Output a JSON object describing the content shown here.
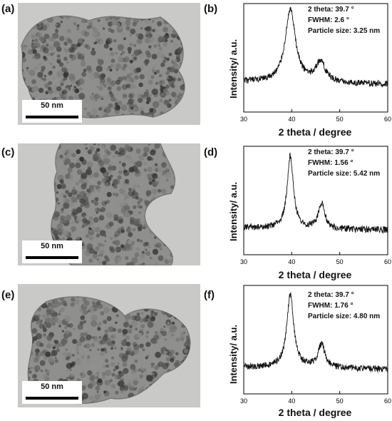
{
  "panels": [
    {
      "label": "(a)",
      "scale_bar": "50 nm"
    },
    {
      "label": "(b)"
    },
    {
      "label": "(c)",
      "scale_bar": "50 nm"
    },
    {
      "label": "(d)"
    },
    {
      "label": "(e)",
      "scale_bar": "50 nm"
    },
    {
      "label": "(f)"
    }
  ],
  "chart_data": [
    {
      "type": "line",
      "xlabel": "2 theta / degree",
      "ylabel": "Intensity/ a.u.",
      "xlim": [
        30,
        60
      ],
      "x_ticks": [
        30,
        40,
        50,
        60
      ],
      "annotations": [
        "2 theta: 39.7 °",
        "FWHM: 2.6 °",
        "Particle size: 3.25 nm"
      ],
      "peaks": [
        {
          "x": 39.7,
          "height": 1.0,
          "fwhm": 2.6
        },
        {
          "x": 46.0,
          "height": 0.28,
          "fwhm": 2.6
        }
      ],
      "baseline": 0.1
    },
    {
      "type": "line",
      "xlabel": "2 theta / degree",
      "ylabel": "Intensity/ a.u.",
      "xlim": [
        30,
        60
      ],
      "x_ticks": [
        30,
        40,
        50,
        60
      ],
      "annotations": [
        "2 theta: 39.7 °",
        "FWHM: 1.56 °",
        "Particle size: 5.42 nm"
      ],
      "peaks": [
        {
          "x": 39.7,
          "height": 1.0,
          "fwhm": 1.56
        },
        {
          "x": 46.2,
          "height": 0.35,
          "fwhm": 1.6
        }
      ],
      "baseline": 0.06
    },
    {
      "type": "line",
      "xlabel": "2 theta / degree",
      "ylabel": "Intensity/ a.u.",
      "xlim": [
        30,
        60
      ],
      "x_ticks": [
        30,
        40,
        50,
        60
      ],
      "annotations": [
        "2 theta: 39.7 °",
        "FWHM: 1.76 °",
        "Particle size: 4.80 nm"
      ],
      "peaks": [
        {
          "x": 39.7,
          "height": 1.0,
          "fwhm": 1.76
        },
        {
          "x": 46.2,
          "height": 0.32,
          "fwhm": 1.8
        }
      ],
      "baseline": 0.06
    }
  ]
}
